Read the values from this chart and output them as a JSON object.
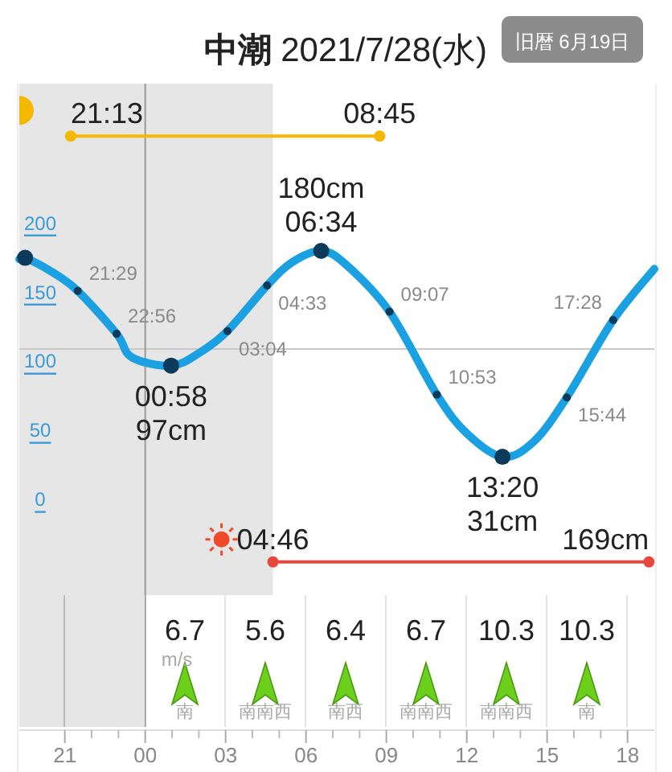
{
  "chart_data": [
    {
      "type": "line",
      "title": "**中潮** 2021/7/28(水)",
      "subtitle": "旧暦 6月19日",
      "xlim": [
        "2021-07-27T19:18",
        "2021-07-28T19:00"
      ],
      "xticks": [
        {
          "value": "2021-07-27T21:00",
          "label": "21"
        },
        {
          "value": "2021-07-28T00:00",
          "label": "00"
        },
        {
          "value": "2021-07-28T03:00",
          "label": "03"
        },
        {
          "value": "2021-07-28T06:00",
          "label": "06"
        },
        {
          "value": "2021-07-28T09:00",
          "label": "09"
        },
        {
          "value": "2021-07-28T12:00",
          "label": "12"
        },
        {
          "value": "2021-07-28T15:00",
          "label": "15"
        },
        {
          "value": "2021-07-28T18:00",
          "label": "18"
        }
      ],
      "ylim": [
        -197,
        301
      ],
      "yticks": [
        0,
        50,
        100,
        150,
        200
      ],
      "series": [
        {
          "type": "line",
          "color": "#1ba1e2",
          "x": [
            "2021-07-27T19:18",
            "2021-07-27T19:31",
            "2021-07-27T20:30",
            "2021-07-27T21:29",
            "2021-07-27T22:56",
            "2021-07-27T23:30",
            "2021-07-28T00:58",
            "2021-07-28T02:00",
            "2021-07-28T03:04",
            "2021-07-28T04:33",
            "2021-07-28T05:30",
            "2021-07-28T06:34",
            "2021-07-28T07:30",
            "2021-07-28T09:07",
            "2021-07-28T10:53",
            "2021-07-28T12:00",
            "2021-07-28T13:20",
            "2021-07-28T14:30",
            "2021-07-28T15:44",
            "2021-07-28T17:28",
            "2021-07-28T19:00"
          ],
          "values": [
            174,
            175,
            165,
            151,
            120,
            103,
            97,
            106,
            122,
            155,
            172,
            180,
            170,
            136,
            76,
            48,
            31,
            42,
            74,
            130,
            167
          ]
        },
        {
          "type": "scatter",
          "color": "#0b3a5a",
          "x": [
            "2021-07-27T19:31",
            "2021-07-28T00:58",
            "2021-07-28T06:34",
            "2021-07-28T13:20"
          ],
          "values": [
            175,
            97,
            180,
            31
          ]
        },
        {
          "type": "scatter",
          "color": "#0b3a5a",
          "x": [
            "2021-07-27T21:29",
            "2021-07-27T22:56",
            "2021-07-28T03:04",
            "2021-07-28T04:33",
            "2021-07-28T09:07",
            "2021-07-28T10:53",
            "2021-07-28T15:44",
            "2021-07-28T17:28"
          ],
          "values": [
            151,
            120,
            122,
            155,
            136,
            76,
            74,
            130
          ]
        },
        {
          "type": "line",
          "color": "#f5b800",
          "marker": "circle",
          "x": [
            "2021-07-27T21:13",
            "2021-07-28T08:45"
          ],
          "values": [
            263,
            263
          ]
        },
        {
          "type": "line",
          "color": "#e8473c",
          "marker": "circle",
          "x": [
            "2021-07-28T04:46",
            "2021-07-28T18:48"
          ],
          "values": [
            -45,
            -45
          ]
        }
      ],
      "ref_lines": [
        {
          "axis": "y",
          "value": 109,
          "color": "#c8c8c8"
        },
        {
          "axis": "x",
          "value": "2021-07-28T00:00",
          "color": "#9a9a9a"
        }
      ],
      "bands": [
        {
          "axis": "x",
          "from": "2021-07-27T19:18",
          "to": "2021-07-28T04:46",
          "color": "#e6e6e6"
        }
      ],
      "annotations": [
        {
          "text": "180cm",
          "x": "2021-07-28T06:34",
          "y": 180
        },
        {
          "text": "06:34",
          "x": "2021-07-28T06:34",
          "y": 180
        },
        {
          "text": "00:58",
          "x": "2021-07-28T00:58",
          "y": 97
        },
        {
          "text": "97cm",
          "x": "2021-07-28T00:58",
          "y": 97
        },
        {
          "text": "13:20",
          "x": "2021-07-28T13:20",
          "y": 31
        },
        {
          "text": "31cm",
          "x": "2021-07-28T13:20",
          "y": 31
        },
        {
          "text": "21:29",
          "x": "2021-07-27T21:29",
          "y": 151
        },
        {
          "text": "22:56",
          "x": "2021-07-27T22:56",
          "y": 120
        },
        {
          "text": "03:04",
          "x": "2021-07-28T03:04",
          "y": 122
        },
        {
          "text": "04:33",
          "x": "2021-07-28T04:33",
          "y": 155
        },
        {
          "text": "09:07",
          "x": "2021-07-28T09:07",
          "y": 136
        },
        {
          "text": "10:53",
          "x": "2021-07-28T10:53",
          "y": 76
        },
        {
          "text": "15:44",
          "x": "2021-07-28T15:44",
          "y": 74
        },
        {
          "text": "17:28",
          "x": "2021-07-28T17:28",
          "y": 130
        },
        {
          "text": "21:13",
          "x": "2021-07-27T21:13",
          "y": 263
        },
        {
          "text": "08:45",
          "x": "2021-07-28T08:45",
          "y": 263
        },
        {
          "text": "04:46",
          "x": "2021-07-28T04:46",
          "y": -45
        },
        {
          "text": "169cm",
          "x": "2021-07-28T18:48",
          "y": -45
        }
      ]
    },
    {
      "type": "other",
      "categories": [
        "南",
        "南南西",
        "南西",
        "南南西",
        "南南西",
        "南"
      ],
      "values": [
        6.7,
        5.6,
        6.4,
        6.7,
        10.3,
        10.3
      ],
      "data_labels": true,
      "annotations": [
        "m/s"
      ]
    }
  ]
}
